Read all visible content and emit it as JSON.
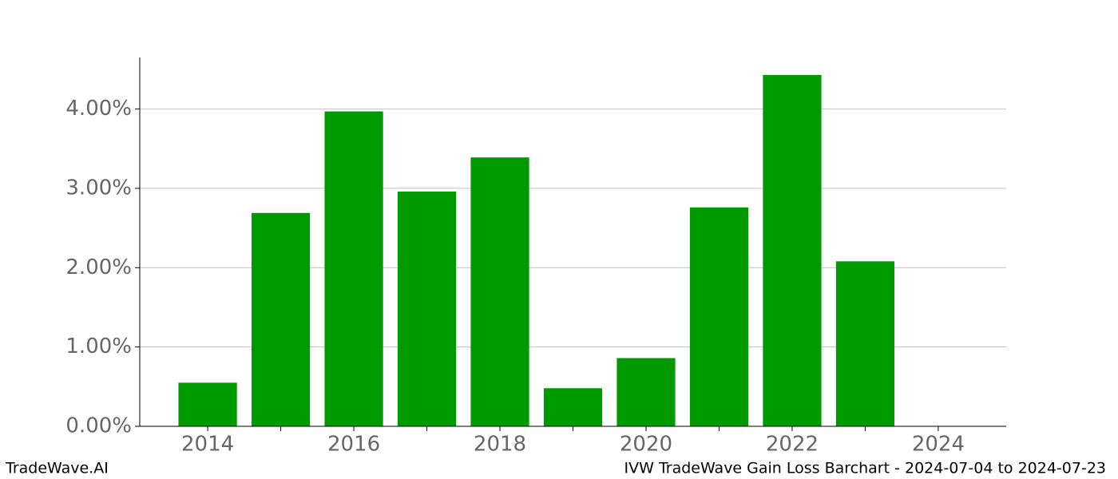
{
  "chart_data": {
    "type": "bar",
    "title": "IVW TradeWave Gain Loss Barchart - 2024-07-04 to 2024-07-23",
    "source": "TradeWave.AI",
    "x": [
      2014,
      2015,
      2016,
      2017,
      2018,
      2019,
      2020,
      2021,
      2022,
      2023
    ],
    "values": [
      0.55,
      2.69,
      3.97,
      2.96,
      3.39,
      0.48,
      0.86,
      2.76,
      4.43,
      2.08
    ],
    "color": "#009900",
    "xlim": [
      2013.07,
      2024.93
    ],
    "xticks": [
      2014,
      2016,
      2018,
      2020,
      2022,
      2024
    ],
    "xminorticks": [
      2015,
      2017,
      2019,
      2021,
      2023
    ],
    "ylim": [
      0,
      4.65
    ],
    "yticks": [
      {
        "value": 0,
        "label": "0.00%"
      },
      {
        "value": 1,
        "label": "1.00%"
      },
      {
        "value": 2,
        "label": "2.00%"
      },
      {
        "value": 3,
        "label": "3.00%"
      },
      {
        "value": 4,
        "label": "4.00%"
      }
    ],
    "grid": true
  }
}
